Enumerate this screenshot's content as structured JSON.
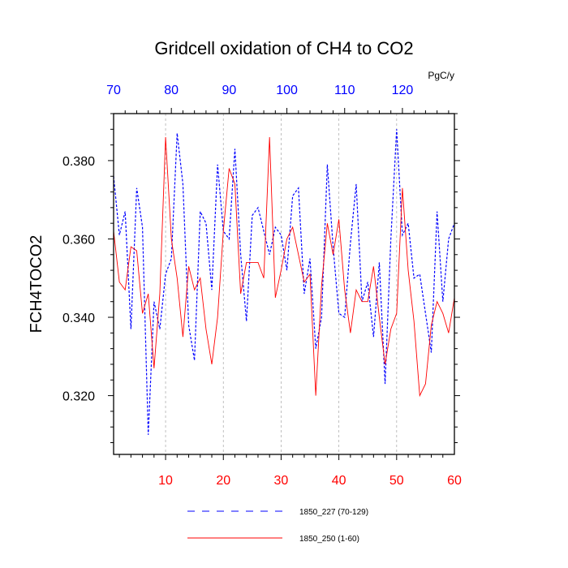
{
  "chart_data": {
    "type": "line",
    "title": "Gridcell oxidation of CH4 to CO2",
    "units": "PgC/y",
    "ylabel": "FCH4TOCO2",
    "xlabel": "",
    "ylim": [
      0.305,
      0.392
    ],
    "yticks": [
      0.32,
      0.34,
      0.36,
      0.38
    ],
    "ytick_labels": [
      "0.320",
      "0.340",
      "0.360",
      "0.380"
    ],
    "bottom_axis": {
      "range": [
        1,
        60
      ],
      "ticks": [
        10,
        20,
        30,
        40,
        50,
        60
      ],
      "color": "#ff0000"
    },
    "top_axis": {
      "range": [
        70,
        129
      ],
      "ticks": [
        70,
        80,
        90,
        100,
        110,
        120
      ],
      "color": "#0000ff"
    },
    "grid": "vertical dashed at bottom-axis ticks",
    "series": [
      {
        "name": "1850_227 (70-129)",
        "color": "#0000ff",
        "style": "dashed",
        "x": [
          1,
          2,
          3,
          4,
          5,
          6,
          7,
          8,
          9,
          10,
          11,
          12,
          13,
          14,
          15,
          16,
          17,
          18,
          19,
          20,
          21,
          22,
          23,
          24,
          25,
          26,
          27,
          28,
          29,
          30,
          31,
          32,
          33,
          34,
          35,
          36,
          37,
          38,
          39,
          40,
          41,
          42,
          43,
          44,
          45,
          46,
          47,
          48,
          49,
          50,
          51,
          52,
          53,
          54,
          55,
          56,
          57,
          58,
          59,
          60
        ],
        "values": [
          0.376,
          0.361,
          0.367,
          0.337,
          0.373,
          0.363,
          0.31,
          0.344,
          0.337,
          0.351,
          0.355,
          0.387,
          0.374,
          0.338,
          0.329,
          0.367,
          0.364,
          0.347,
          0.379,
          0.362,
          0.36,
          0.383,
          0.356,
          0.339,
          0.366,
          0.368,
          0.362,
          0.356,
          0.363,
          0.361,
          0.352,
          0.371,
          0.373,
          0.346,
          0.355,
          0.332,
          0.34,
          0.379,
          0.358,
          0.341,
          0.34,
          0.359,
          0.374,
          0.344,
          0.349,
          0.335,
          0.354,
          0.323,
          0.36,
          0.388,
          0.361,
          0.364,
          0.35,
          0.351,
          0.341,
          0.331,
          0.367,
          0.344,
          0.36,
          0.364
        ]
      },
      {
        "name": "1850_250 (1-60)",
        "color": "#ff0000",
        "style": "solid",
        "x": [
          1,
          2,
          3,
          4,
          5,
          6,
          7,
          8,
          9,
          10,
          11,
          12,
          13,
          14,
          15,
          16,
          17,
          18,
          19,
          20,
          21,
          22,
          23,
          24,
          25,
          26,
          27,
          28,
          29,
          30,
          31,
          32,
          33,
          34,
          35,
          36,
          37,
          38,
          39,
          40,
          41,
          42,
          43,
          44,
          45,
          46,
          47,
          48,
          49,
          50,
          51,
          52,
          53,
          54,
          55,
          56,
          57,
          58,
          59,
          60
        ],
        "values": [
          0.362,
          0.349,
          0.347,
          0.358,
          0.357,
          0.341,
          0.346,
          0.327,
          0.346,
          0.386,
          0.36,
          0.35,
          0.335,
          0.353,
          0.347,
          0.35,
          0.337,
          0.328,
          0.34,
          0.362,
          0.378,
          0.374,
          0.346,
          0.354,
          0.354,
          0.354,
          0.35,
          0.386,
          0.345,
          0.352,
          0.36,
          0.363,
          0.356,
          0.349,
          0.351,
          0.32,
          0.348,
          0.364,
          0.356,
          0.365,
          0.347,
          0.336,
          0.347,
          0.344,
          0.344,
          0.353,
          0.34,
          0.328,
          0.337,
          0.341,
          0.373,
          0.352,
          0.339,
          0.32,
          0.323,
          0.338,
          0.344,
          0.341,
          0.336,
          0.345
        ]
      }
    ]
  }
}
